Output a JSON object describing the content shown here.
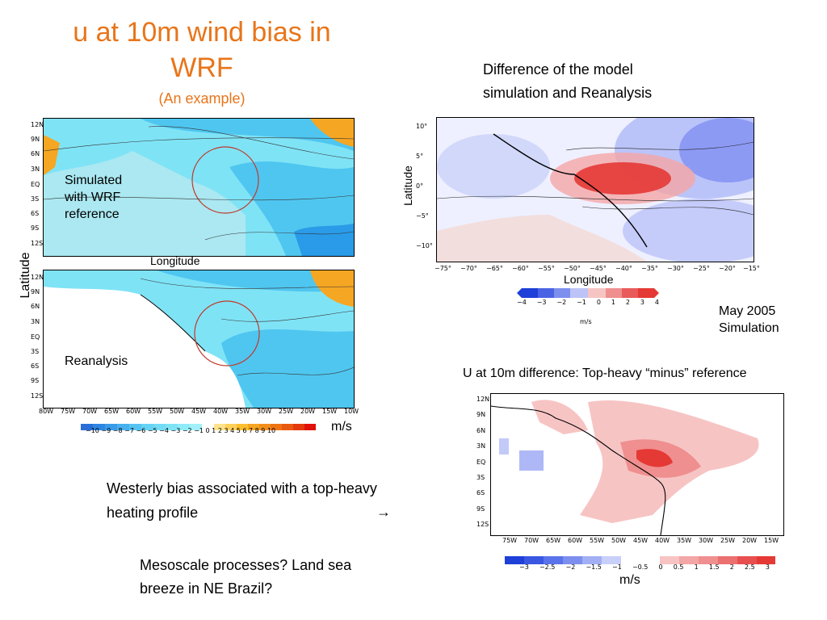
{
  "slide": {
    "title_line1": "u at 10m wind bias in",
    "title_line2": "WRF",
    "subtitle": "(An example)",
    "diff_heading_line1": "Difference of the model",
    "diff_heading_line2": "simulation and Reanalysis",
    "may_line1": "May 2005",
    "may_line2": "Simulation",
    "u10_heading": "U at 10m difference: Top-heavy “minus” reference",
    "westerly_line1": "Westerly bias associated with a top-heavy",
    "westerly_line2": "heating profile",
    "arrow": "→",
    "meso_line1": "Mesoscale processes? Land sea",
    "meso_line2": "breeze in NE Brazil?"
  },
  "left_panel": {
    "latitude_label": "Latitude",
    "longitude_label": "Longitude",
    "top_map_label_line1": "Simulated",
    "top_map_label_line2": "with WRF",
    "top_map_label_line3": "reference",
    "bottom_map_label": "Reanalysis",
    "lat_ticks": [
      "12N",
      "9N",
      "6N",
      "3N",
      "EQ",
      "3S",
      "6S",
      "9S",
      "12S"
    ],
    "lon_ticks": [
      "80W",
      "75W",
      "70W",
      "65W",
      "60W",
      "55W",
      "50W",
      "45W",
      "40W",
      "35W",
      "30W",
      "25W",
      "20W",
      "15W",
      "10W"
    ],
    "colorbar_ticks": [
      "−10",
      "−9",
      "−8",
      "−7",
      "−6",
      "−5",
      "−4",
      "−3",
      "−2",
      "−1",
      "0",
      "1",
      "2",
      "3",
      "4",
      "5",
      "6",
      "7",
      "8",
      "9",
      "10"
    ],
    "colorbar_unit": "m/s"
  },
  "right_top_panel": {
    "latitude_label": "Latitude",
    "longitude_label": "Longitude",
    "lat_ticks": [
      "10°",
      "5°",
      "0°",
      "−5°",
      "−10°"
    ],
    "lon_ticks": [
      "−75°",
      "−70°",
      "−65°",
      "−60°",
      "−55°",
      "−50°",
      "−45°",
      "−40°",
      "−35°",
      "−30°",
      "−25°",
      "−20°",
      "−15°"
    ],
    "colorbar_ticks": [
      "−4",
      "−3",
      "−2",
      "−1",
      "0",
      "1",
      "2",
      "3",
      "4"
    ],
    "colorbar_unit": "m/s"
  },
  "right_bottom_panel": {
    "lat_ticks": [
      "12N",
      "9N",
      "6N",
      "3N",
      "EQ",
      "3S",
      "6S",
      "9S",
      "12S"
    ],
    "lon_ticks": [
      "75W",
      "70W",
      "65W",
      "60W",
      "55W",
      "50W",
      "45W",
      "40W",
      "35W",
      "30W",
      "25W",
      "20W",
      "15W"
    ],
    "colorbar_ticks": [
      "−3",
      "−2.5",
      "−2",
      "−1.5",
      "−1",
      "−0.5",
      "0",
      "0.5",
      "1",
      "1.5",
      "2",
      "2.5",
      "3"
    ],
    "colorbar_unit": "m/s"
  },
  "colors": {
    "title_orange": "#e8751a",
    "ocean_light_blue": "#7fe3f6",
    "ocean_mid_blue": "#4fc6f0",
    "ocean_deep_blue": "#2a9be8",
    "warm_orange": "#f5a623",
    "diff_red": "#e53935",
    "diff_blue": "#1e3fd8"
  }
}
